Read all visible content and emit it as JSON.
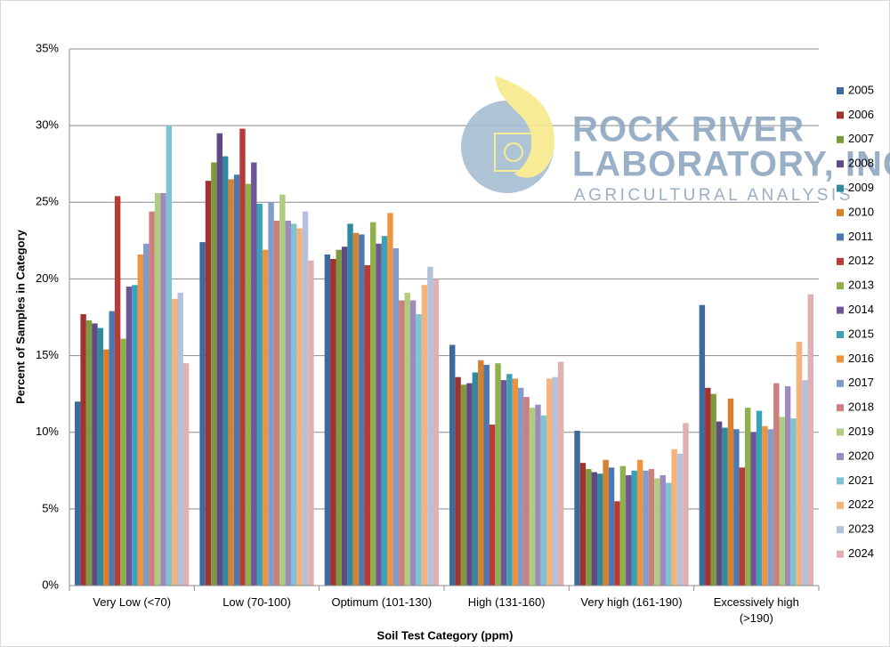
{
  "chart_data": {
    "type": "bar",
    "x_label": "Soil Test Category (ppm)",
    "y_label": "Percent of Samples in Category",
    "categories": [
      "Very Low (<70)",
      "Low (70-100)",
      "Optimum (101-130)",
      "High (131-160)",
      "Very high (161-190)",
      "Excessively high (>190)"
    ],
    "ylim": [
      0,
      35
    ],
    "yticks": [
      {
        "value": 0,
        "label": "0%"
      },
      {
        "value": 5,
        "label": "5%"
      },
      {
        "value": 10,
        "label": "10%"
      },
      {
        "value": 15,
        "label": "15%"
      },
      {
        "value": 20,
        "label": "20%"
      },
      {
        "value": 25,
        "label": "25%"
      },
      {
        "value": 30,
        "label": "30%"
      },
      {
        "value": 35,
        "label": "35%"
      }
    ],
    "grid": true,
    "legend": "right",
    "series": [
      {
        "name": "2005",
        "color": "#3e6b9e",
        "values": [
          12.0,
          22.4,
          21.6,
          15.7,
          10.1,
          18.3
        ]
      },
      {
        "name": "2006",
        "color": "#a0322f",
        "values": [
          17.7,
          26.4,
          21.3,
          13.6,
          8.0,
          12.9
        ]
      },
      {
        "name": "2007",
        "color": "#7f9a3e",
        "values": [
          17.3,
          27.6,
          21.9,
          13.1,
          7.6,
          12.5
        ]
      },
      {
        "name": "2008",
        "color": "#604a85",
        "values": [
          17.1,
          29.5,
          22.1,
          13.2,
          7.4,
          10.7
        ]
      },
      {
        "name": "2009",
        "color": "#2f8a9e",
        "values": [
          16.8,
          28.0,
          23.6,
          13.9,
          7.3,
          10.3
        ]
      },
      {
        "name": "2010",
        "color": "#d9802f",
        "values": [
          15.4,
          26.5,
          23.0,
          14.7,
          8.2,
          12.2
        ]
      },
      {
        "name": "2011",
        "color": "#4a79b0",
        "values": [
          17.9,
          26.8,
          22.9,
          14.4,
          7.7,
          10.2
        ]
      },
      {
        "name": "2012",
        "color": "#b93a36",
        "values": [
          25.4,
          29.8,
          20.9,
          10.5,
          5.5,
          7.7
        ]
      },
      {
        "name": "2013",
        "color": "#8fb04a",
        "values": [
          16.1,
          26.2,
          23.7,
          14.5,
          7.8,
          11.6
        ]
      },
      {
        "name": "2014",
        "color": "#6d5597",
        "values": [
          19.5,
          27.6,
          22.3,
          13.4,
          7.2,
          10.0
        ]
      },
      {
        "name": "2015",
        "color": "#3ba1b8",
        "values": [
          19.6,
          24.9,
          22.8,
          13.8,
          7.5,
          11.4
        ]
      },
      {
        "name": "2016",
        "color": "#ee9440",
        "values": [
          21.6,
          21.9,
          24.3,
          13.5,
          8.2,
          10.4
        ]
      },
      {
        "name": "2017",
        "color": "#7f9ccb",
        "values": [
          22.3,
          25.0,
          22.0,
          12.9,
          7.5,
          10.2
        ]
      },
      {
        "name": "2018",
        "color": "#cd7f7c",
        "values": [
          24.4,
          23.8,
          18.6,
          12.3,
          7.6,
          13.2
        ]
      },
      {
        "name": "2019",
        "color": "#b0cc80",
        "values": [
          25.6,
          25.5,
          19.1,
          11.6,
          7.0,
          11.0
        ]
      },
      {
        "name": "2020",
        "color": "#9d8bbc",
        "values": [
          25.6,
          23.8,
          18.6,
          11.8,
          7.2,
          13.0
        ]
      },
      {
        "name": "2021",
        "color": "#7ec3d4",
        "values": [
          30.0,
          23.6,
          17.7,
          11.1,
          6.7,
          10.9
        ]
      },
      {
        "name": "2022",
        "color": "#f5b27a",
        "values": [
          18.7,
          23.3,
          19.6,
          13.5,
          8.9,
          15.9
        ]
      },
      {
        "name": "2023",
        "color": "#b3c1dd",
        "values": [
          19.1,
          24.4,
          20.8,
          13.6,
          8.6,
          13.4
        ]
      },
      {
        "name": "2024",
        "color": "#dfb1b0",
        "values": [
          14.5,
          21.2,
          20.0,
          14.6,
          10.6,
          19.0
        ]
      }
    ]
  },
  "logo": {
    "line1": "ROCK RIVER",
    "line2": "LABORATORY, INC.",
    "tagline": "AGRICULTURAL ANALYSIS"
  }
}
